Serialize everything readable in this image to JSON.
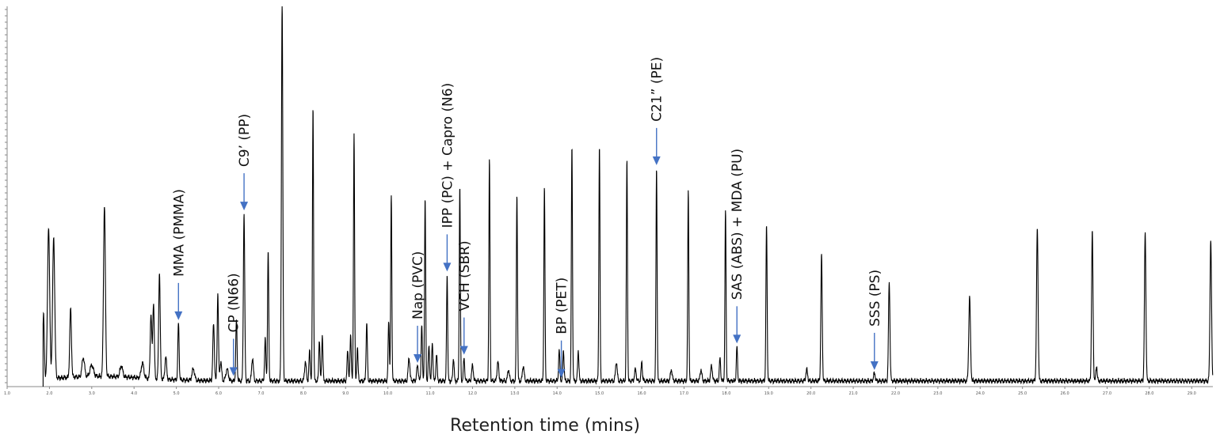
{
  "chart_data": {
    "type": "line",
    "title": "",
    "xlabel": "Retention time (mins)",
    "ylabel": "",
    "xlim": [
      1.0,
      29.5
    ],
    "ylim": [
      0,
      100
    ],
    "grid": false,
    "x_ticks": [
      "1.0",
      "2.0",
      "3.0",
      "4.0",
      "5.0",
      "6.0",
      "7.0",
      "8.0",
      "9.0",
      "10.0",
      "11.0",
      "12.0",
      "13.0",
      "14.0",
      "15.0",
      "16.0",
      "17.0",
      "18.0",
      "19.0",
      "20.0",
      "21.0",
      "22.0",
      "23.0",
      "24.0",
      "25.0",
      "26.0",
      "27.0",
      "28.0",
      "29.0"
    ],
    "baseline": 1.5,
    "peaks": [
      {
        "x": 1.86,
        "h": 17,
        "w": 0.018
      },
      {
        "x": 1.98,
        "h": 40,
        "w": 0.025
      },
      {
        "x": 2.1,
        "h": 37,
        "w": 0.025
      },
      {
        "x": 2.5,
        "h": 18,
        "w": 0.02
      },
      {
        "x": 2.8,
        "h": 5,
        "w": 0.03
      },
      {
        "x": 3.0,
        "h": 3,
        "w": 0.04
      },
      {
        "x": 3.3,
        "h": 45,
        "w": 0.022
      },
      {
        "x": 3.7,
        "h": 3,
        "w": 0.03
      },
      {
        "x": 4.2,
        "h": 4,
        "w": 0.03
      },
      {
        "x": 4.4,
        "h": 17,
        "w": 0.018
      },
      {
        "x": 4.46,
        "h": 20,
        "w": 0.018
      },
      {
        "x": 4.6,
        "h": 28,
        "w": 0.018
      },
      {
        "x": 4.75,
        "h": 6,
        "w": 0.02
      },
      {
        "x": 5.05,
        "h": 15,
        "w": 0.015
      },
      {
        "x": 5.4,
        "h": 3,
        "w": 0.03
      },
      {
        "x": 5.88,
        "h": 15,
        "w": 0.018
      },
      {
        "x": 5.98,
        "h": 23,
        "w": 0.015
      },
      {
        "x": 6.05,
        "h": 5,
        "w": 0.02
      },
      {
        "x": 6.2,
        "h": 3,
        "w": 0.03
      },
      {
        "x": 6.42,
        "h": 16,
        "w": 0.015
      },
      {
        "x": 6.6,
        "h": 44,
        "w": 0.016
      },
      {
        "x": 6.8,
        "h": 6,
        "w": 0.02
      },
      {
        "x": 7.1,
        "h": 11,
        "w": 0.015
      },
      {
        "x": 7.17,
        "h": 34,
        "w": 0.014
      },
      {
        "x": 7.5,
        "h": 100,
        "w": 0.016
      },
      {
        "x": 8.05,
        "h": 5,
        "w": 0.02
      },
      {
        "x": 8.15,
        "h": 8,
        "w": 0.015
      },
      {
        "x": 8.23,
        "h": 72,
        "w": 0.013
      },
      {
        "x": 8.38,
        "h": 11,
        "w": 0.014
      },
      {
        "x": 8.45,
        "h": 12,
        "w": 0.014
      },
      {
        "x": 9.05,
        "h": 8,
        "w": 0.015
      },
      {
        "x": 9.12,
        "h": 12,
        "w": 0.015
      },
      {
        "x": 9.2,
        "h": 65,
        "w": 0.013
      },
      {
        "x": 9.28,
        "h": 9,
        "w": 0.014
      },
      {
        "x": 9.5,
        "h": 15,
        "w": 0.015
      },
      {
        "x": 10.02,
        "h": 16,
        "w": 0.014
      },
      {
        "x": 10.08,
        "h": 49,
        "w": 0.013
      },
      {
        "x": 10.5,
        "h": 6,
        "w": 0.02
      },
      {
        "x": 10.7,
        "h": 4,
        "w": 0.02
      },
      {
        "x": 10.8,
        "h": 15,
        "w": 0.014
      },
      {
        "x": 10.88,
        "h": 48,
        "w": 0.013
      },
      {
        "x": 10.97,
        "h": 9,
        "w": 0.015
      },
      {
        "x": 11.05,
        "h": 10,
        "w": 0.015
      },
      {
        "x": 11.15,
        "h": 7,
        "w": 0.015
      },
      {
        "x": 11.4,
        "h": 28,
        "w": 0.013
      },
      {
        "x": 11.55,
        "h": 6,
        "w": 0.015
      },
      {
        "x": 11.7,
        "h": 51,
        "w": 0.013
      },
      {
        "x": 11.8,
        "h": 6,
        "w": 0.015
      },
      {
        "x": 12.0,
        "h": 4,
        "w": 0.02
      },
      {
        "x": 12.4,
        "h": 58,
        "w": 0.013
      },
      {
        "x": 12.6,
        "h": 5,
        "w": 0.02
      },
      {
        "x": 12.85,
        "h": 3,
        "w": 0.02
      },
      {
        "x": 13.05,
        "h": 49,
        "w": 0.013
      },
      {
        "x": 13.2,
        "h": 4,
        "w": 0.02
      },
      {
        "x": 13.7,
        "h": 51,
        "w": 0.013
      },
      {
        "x": 14.05,
        "h": 8,
        "w": 0.015
      },
      {
        "x": 14.15,
        "h": 8,
        "w": 0.015
      },
      {
        "x": 14.35,
        "h": 62,
        "w": 0.013
      },
      {
        "x": 14.5,
        "h": 8,
        "w": 0.015
      },
      {
        "x": 15.0,
        "h": 62,
        "w": 0.013
      },
      {
        "x": 15.4,
        "h": 5,
        "w": 0.02
      },
      {
        "x": 15.65,
        "h": 58,
        "w": 0.013
      },
      {
        "x": 15.85,
        "h": 3,
        "w": 0.02
      },
      {
        "x": 16.0,
        "h": 5,
        "w": 0.015
      },
      {
        "x": 16.35,
        "h": 56,
        "w": 0.013
      },
      {
        "x": 16.7,
        "h": 3,
        "w": 0.02
      },
      {
        "x": 17.1,
        "h": 50,
        "w": 0.013
      },
      {
        "x": 17.4,
        "h": 3,
        "w": 0.02
      },
      {
        "x": 17.65,
        "h": 4,
        "w": 0.02
      },
      {
        "x": 17.85,
        "h": 6,
        "w": 0.015
      },
      {
        "x": 17.98,
        "h": 45,
        "w": 0.013
      },
      {
        "x": 18.25,
        "h": 9,
        "w": 0.014
      },
      {
        "x": 18.95,
        "h": 41,
        "w": 0.014
      },
      {
        "x": 19.9,
        "h": 3,
        "w": 0.02
      },
      {
        "x": 20.25,
        "h": 33,
        "w": 0.016
      },
      {
        "x": 21.5,
        "h": 2,
        "w": 0.02
      },
      {
        "x": 21.85,
        "h": 26,
        "w": 0.017
      },
      {
        "x": 23.75,
        "h": 22,
        "w": 0.02
      },
      {
        "x": 25.35,
        "h": 40,
        "w": 0.018
      },
      {
        "x": 26.65,
        "h": 39,
        "w": 0.017
      },
      {
        "x": 26.75,
        "h": 4,
        "w": 0.015
      },
      {
        "x": 27.9,
        "h": 39,
        "w": 0.017
      },
      {
        "x": 29.45,
        "h": 37,
        "w": 0.018
      }
    ],
    "annotations": [
      {
        "label": "MMA (PMMA)",
        "x": 5.05
      },
      {
        "label": "CP (N66)",
        "x": 6.35
      },
      {
        "label": "C9’ (PP)",
        "x": 6.6
      },
      {
        "label": "Nap (PVC)",
        "x": 10.7
      },
      {
        "label": "IPP (PC) + Capro (N6)",
        "x": 11.4
      },
      {
        "label": "VCH (SBR)",
        "x": 11.8
      },
      {
        "label": "BP (PET)",
        "x": 14.1
      },
      {
        "label": "C21” (PE)",
        "x": 16.35
      },
      {
        "label": "SAS (ABS) + MDA (PU)",
        "x": 18.25
      },
      {
        "label": "SSS (PS)",
        "x": 21.5
      }
    ]
  },
  "colors": {
    "trace": "#000000",
    "arrow": "#4472c4",
    "axis": "#888888"
  }
}
